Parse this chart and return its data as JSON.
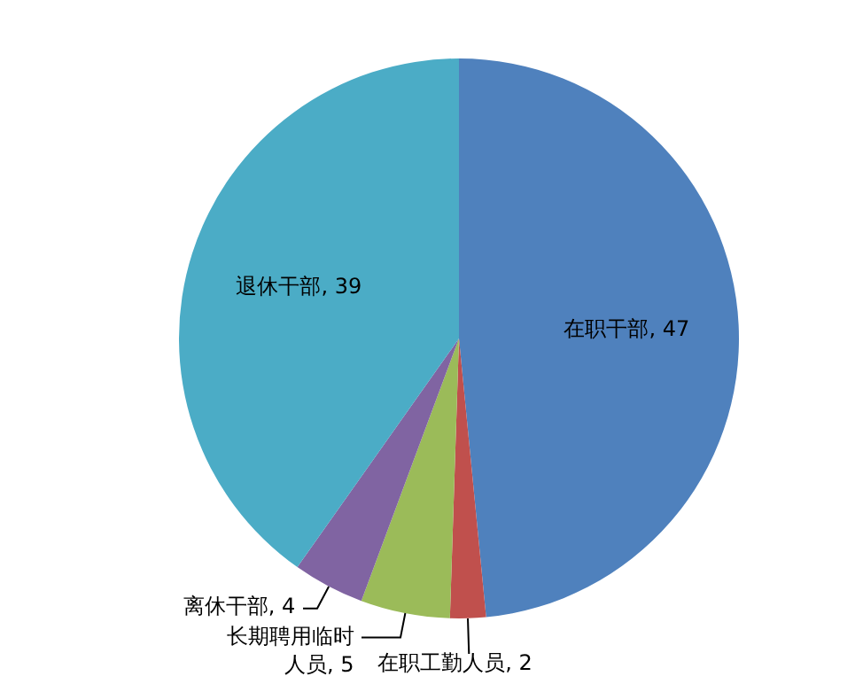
{
  "chart_data": {
    "type": "pie",
    "categories": [
      "在职干部",
      "在职工勤人员",
      "长期聘用临时人员",
      "离休干部",
      "退休干部"
    ],
    "values": [
      47,
      2,
      5,
      4,
      39
    ],
    "colors": [
      "#4f81bd",
      "#c0504d",
      "#9bbb59",
      "#8064a2",
      "#4bacc6"
    ],
    "value_labels": [
      ", 47",
      ", 2",
      ", 5",
      ", 4",
      ", 39"
    ],
    "legend": false
  }
}
